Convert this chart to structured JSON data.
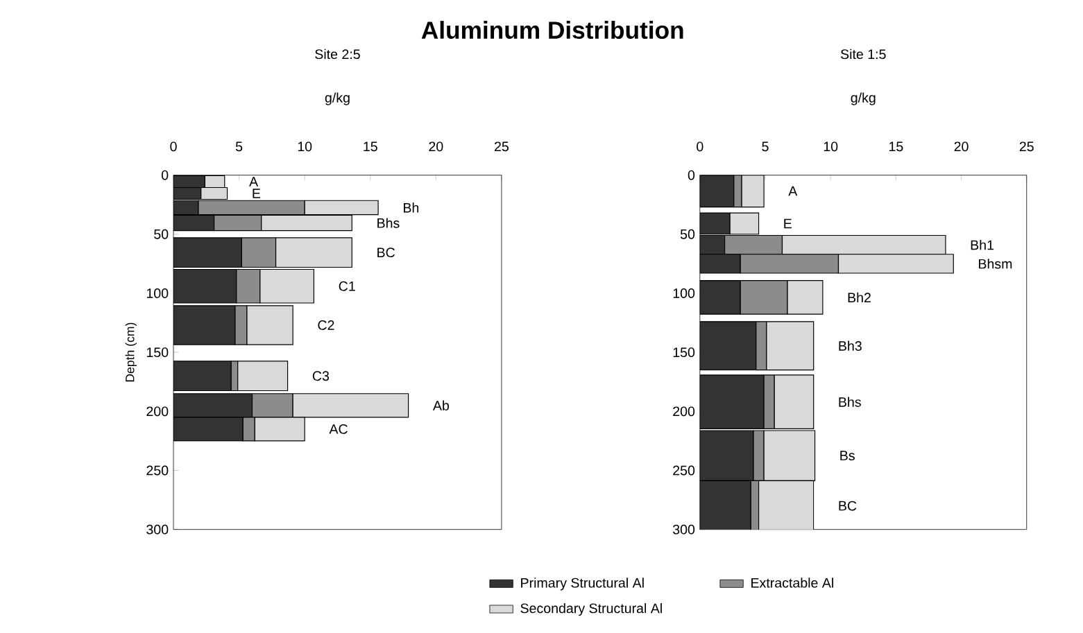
{
  "chart_data": [
    {
      "type": "bar",
      "orientation": "horizontal",
      "stacked": true,
      "title": "Aluminum Distribution",
      "subtitle": "Site 2:5",
      "xlabel": "g/kg",
      "ylabel": "Depth (cm)",
      "x": [
        5.5,
        15.5,
        27.5,
        40.5,
        65.5,
        94,
        127,
        170,
        195,
        215
      ],
      "series": [
        {
          "name": "Primary Structural Al",
          "color": "#333333",
          "values": [
            2.4,
            2.1,
            1.9,
            3.1,
            5.2,
            4.8,
            4.7,
            4.4,
            6.0,
            5.3
          ]
        },
        {
          "name": "Extractable Al",
          "color": "#8c8c8c",
          "values": [
            0,
            0,
            8.1,
            3.6,
            2.6,
            1.8,
            0.9,
            0.5,
            3.1,
            0.9
          ]
        },
        {
          "name": "Secondary Structural Al",
          "color": "#d9d9d9",
          "values": [
            1.5,
            2.0,
            5.6,
            6.9,
            5.8,
            4.1,
            3.5,
            3.8,
            8.8,
            3.8
          ]
        }
      ],
      "xlim": [
        0,
        25
      ],
      "xticks": [
        0,
        5,
        10,
        15,
        20,
        25
      ],
      "ylim": [
        300,
        0
      ],
      "yticks": [
        0,
        50,
        100,
        150,
        200,
        250,
        300
      ],
      "legend": "bottom",
      "annotations": [
        "A",
        "E",
        "Bh",
        "Bhs",
        "BC",
        "C1",
        "C2",
        "C3",
        "Ab",
        "AC"
      ]
    },
    {
      "type": "bar",
      "orientation": "horizontal",
      "stacked": true,
      "subtitle": "Site 1:5",
      "xlabel": "g/kg",
      "x": [
        13.5,
        41,
        59,
        75,
        103.5,
        144.5,
        192,
        237.5,
        280
      ],
      "series": [
        {
          "color": "#333333",
          "values": [
            2.6,
            2.3,
            1.9,
            3.1,
            3.1,
            4.3,
            4.9,
            4.1,
            3.9
          ]
        },
        {
          "color": "#8c8c8c",
          "values": [
            0.6,
            0,
            4.4,
            7.5,
            3.6,
            0.8,
            0.8,
            0.8,
            0.6
          ]
        },
        {
          "color": "#d9d9d9",
          "values": [
            1.7,
            2.2,
            12.5,
            8.8,
            2.7,
            3.6,
            3.0,
            3.9,
            4.2
          ]
        }
      ],
      "xlim": [
        0,
        25
      ],
      "xticks": [
        0,
        5,
        10,
        15,
        20,
        25
      ],
      "ylim": [
        300,
        0
      ],
      "yticks": [
        0,
        50,
        100,
        150,
        200,
        250,
        300
      ],
      "annotations": [
        "A",
        "E",
        "Bh1",
        "Bhsm",
        "Bh2",
        "Bh3",
        "Bhs",
        "Bs",
        "BC"
      ]
    }
  ]
}
